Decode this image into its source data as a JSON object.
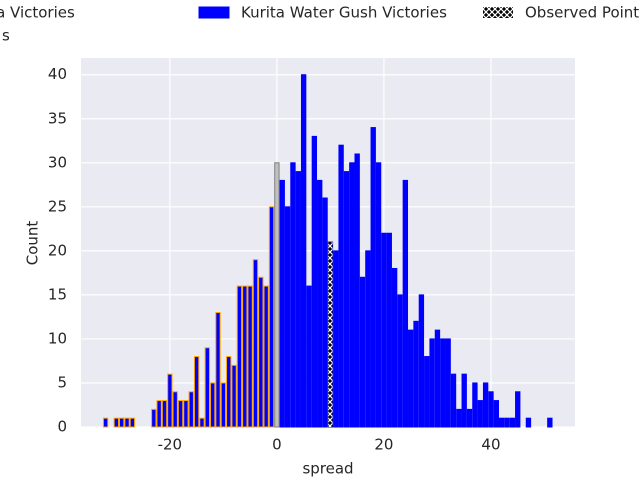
{
  "chart_data": {
    "type": "histogram",
    "xlabel": "spread",
    "ylabel": "Count",
    "xlim": [
      -36.6,
      55.7
    ],
    "ylim": [
      0,
      41.9
    ],
    "xticks": [
      -20,
      0,
      20,
      40
    ],
    "yticks": [
      0,
      5,
      10,
      15,
      20,
      25,
      30,
      35,
      40
    ],
    "grid": true,
    "series": [
      {
        "name": "IRO Fukuoka Victories",
        "color": "#0000ff",
        "edgecolor": "#ffa500",
        "bins": [
          -32.5,
          -31.5,
          -30.5,
          -29.5,
          -28.5,
          -27.5,
          -26.5,
          -25.5,
          -24.5,
          -23.5,
          -22.5,
          -21.5,
          -20.5,
          -19.5,
          -18.5,
          -17.5,
          -16.5,
          -15.5,
          -14.5,
          -13.5,
          -12.5,
          -11.5,
          -10.5,
          -9.5,
          -8.5,
          -7.5,
          -6.5,
          -5.5,
          -4.5,
          -3.5,
          -2.5,
          -1.5,
          -0.5
        ],
        "values": [
          1,
          0,
          1,
          1,
          1,
          1,
          0,
          0,
          0,
          2,
          3,
          3,
          6,
          4,
          3,
          3,
          4,
          8,
          1,
          9,
          5,
          13,
          5,
          8,
          7,
          16,
          16,
          16,
          19,
          17,
          16,
          25
        ]
      },
      {
        "name": "Kurita Water Gush Victories",
        "color": "#0000ff",
        "edgecolor": "#0000ff",
        "bins": [
          0.5,
          1.5,
          2.5,
          3.5,
          4.5,
          5.5,
          6.5,
          7.5,
          8.5,
          9.5,
          10.5,
          11.5,
          12.5,
          13.5,
          14.5,
          15.5,
          16.5,
          17.5,
          18.5,
          19.5,
          20.5,
          21.5,
          22.5,
          23.5,
          24.5,
          25.5,
          26.5,
          27.5,
          28.5,
          29.5,
          30.5,
          31.5,
          32.5,
          33.5,
          34.5,
          35.5,
          36.5,
          37.5,
          38.5,
          39.5,
          40.5,
          41.5,
          42.5,
          43.5,
          44.5,
          45.5,
          46.5,
          47.5,
          48.5,
          49.5,
          50.5,
          51.5
        ],
        "values": [
          28,
          25,
          30,
          29,
          40,
          16,
          33,
          28,
          26,
          21,
          20,
          32,
          29,
          30,
          31,
          17,
          20,
          34,
          30,
          22,
          22,
          18,
          15,
          28,
          11,
          12,
          15,
          8,
          10,
          11,
          10,
          10,
          6,
          2,
          6,
          2,
          5,
          3,
          5,
          4,
          3,
          1,
          1,
          1,
          4,
          0,
          1,
          0,
          0,
          0,
          1
        ]
      },
      {
        "name": "Observed Point",
        "color": "#000000",
        "hatch": true,
        "bins": [
          9.5,
          10.5
        ],
        "values": [
          21
        ]
      },
      {
        "name": "s",
        "color": "#c0c0c0",
        "edgecolor": "#808080",
        "bins": [
          -0.5,
          0.5
        ],
        "values": [
          30
        ]
      }
    ]
  }
}
